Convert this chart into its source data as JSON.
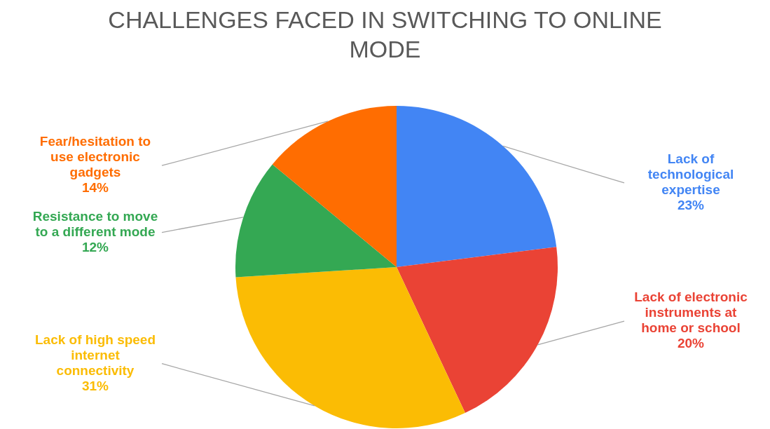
{
  "chart_data": {
    "type": "pie",
    "title": "CHALLENGES FACED IN SWITCHING TO ONLINE MODE",
    "categories": [
      "Lack of technological expertise",
      "Lack of electronic instruments at home or school",
      "Lack of high speed internet connectivity",
      "Resistance to move to a different mode",
      "Fear/hesitation to use electronic gadgets"
    ],
    "values": [
      23,
      20,
      31,
      12,
      14
    ],
    "colors": [
      "#4285f4",
      "#ea4335",
      "#fbbc04",
      "#34a853",
      "#ff6d01"
    ],
    "value_labels": [
      "23%",
      "20%",
      "31%",
      "12%",
      "14%"
    ]
  }
}
